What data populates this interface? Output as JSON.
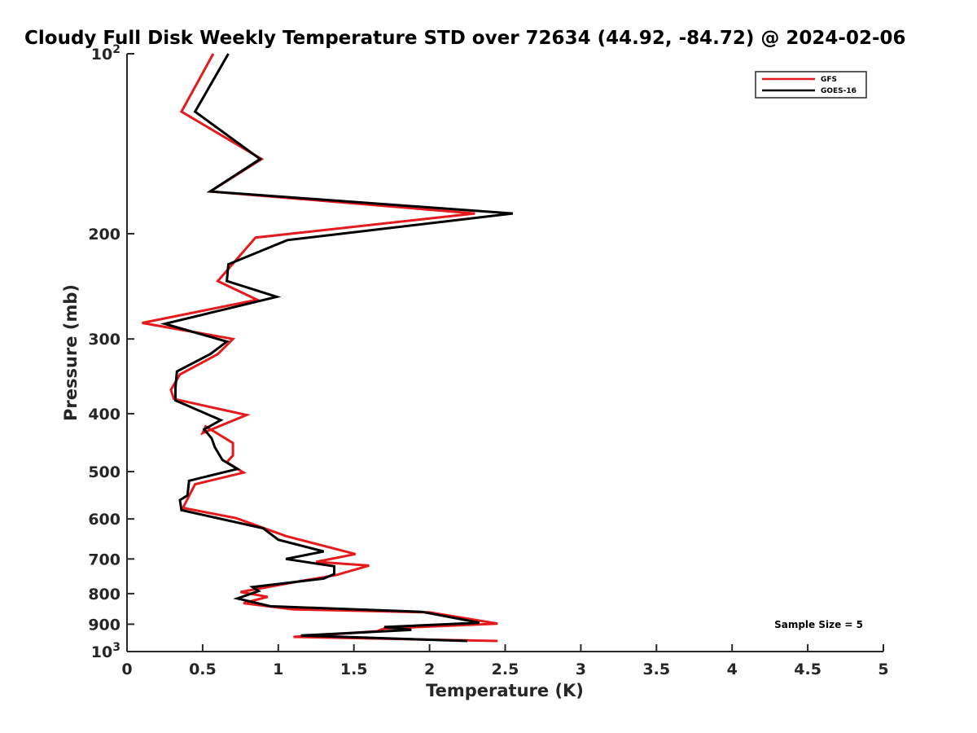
{
  "chart_data": {
    "type": "line",
    "title": "Cloudy Full Disk Weekly Temperature STD over 72634 (44.92, -84.72) @ 2024-02-06",
    "xlabel": "Temperature (K)",
    "ylabel": "Pressure (mb)",
    "xlim": [
      0,
      5
    ],
    "ylim": [
      100,
      1000
    ],
    "y_scale": "log",
    "y_reversed": true,
    "xticks": [
      0,
      0.5,
      1,
      1.5,
      2,
      2.5,
      3,
      3.5,
      4,
      4.5,
      5
    ],
    "xtick_labels": [
      "0",
      "0.5",
      "1",
      "1.5",
      "2",
      "2.5",
      "3",
      "3.5",
      "4",
      "4.5",
      "5"
    ],
    "yticks": [
      100,
      200,
      300,
      400,
      500,
      600,
      700,
      800,
      900,
      1000
    ],
    "ytick_labels": [
      {
        "text": "10",
        "sup": "2"
      },
      {
        "text": "200"
      },
      {
        "text": "300"
      },
      {
        "text": "400"
      },
      {
        "text": "500"
      },
      {
        "text": "600"
      },
      {
        "text": "700"
      },
      {
        "text": "800"
      },
      {
        "text": "900"
      },
      {
        "text": "10",
        "sup": "3"
      }
    ],
    "legend_position": "top-right",
    "annotation": "Sample Size = 5",
    "series": [
      {
        "name": "GFS",
        "color": "#e41a1c",
        "points": [
          [
            0.57,
            100
          ],
          [
            0.36,
            125
          ],
          [
            0.89,
            150
          ],
          [
            0.55,
            170
          ],
          [
            2.3,
            185
          ],
          [
            0.85,
            203
          ],
          [
            0.6,
            240
          ],
          [
            0.86,
            258
          ],
          [
            0.1,
            282
          ],
          [
            0.7,
            300
          ],
          [
            0.6,
            318
          ],
          [
            0.35,
            344
          ],
          [
            0.29,
            365
          ],
          [
            0.31,
            378
          ],
          [
            0.79,
            402
          ],
          [
            0.5,
            431
          ],
          [
            0.52,
            420
          ],
          [
            0.7,
            448
          ],
          [
            0.7,
            470
          ],
          [
            0.66,
            482
          ],
          [
            0.77,
            502
          ],
          [
            0.45,
            525
          ],
          [
            0.37,
            575
          ],
          [
            0.72,
            598
          ],
          [
            1.05,
            641
          ],
          [
            1.51,
            687
          ],
          [
            1.25,
            708
          ],
          [
            1.6,
            718
          ],
          [
            1.38,
            745
          ],
          [
            1.15,
            762
          ],
          [
            0.75,
            795
          ],
          [
            0.93,
            810
          ],
          [
            0.77,
            830
          ],
          [
            1.1,
            850
          ],
          [
            2.0,
            860
          ],
          [
            2.45,
            898
          ],
          [
            1.7,
            915
          ],
          [
            1.65,
            925
          ],
          [
            1.1,
            945
          ],
          [
            2.45,
            960
          ]
        ]
      },
      {
        "name": "GOES-16",
        "color": "#000000",
        "points": [
          [
            0.67,
            100
          ],
          [
            0.45,
            125
          ],
          [
            0.88,
            150
          ],
          [
            0.55,
            170
          ],
          [
            2.55,
            185
          ],
          [
            1.06,
            205
          ],
          [
            0.67,
            225
          ],
          [
            0.66,
            240
          ],
          [
            0.99,
            255
          ],
          [
            0.25,
            283
          ],
          [
            0.66,
            303
          ],
          [
            0.55,
            318
          ],
          [
            0.33,
            340
          ],
          [
            0.32,
            362
          ],
          [
            0.32,
            380
          ],
          [
            0.62,
            410
          ],
          [
            0.51,
            425
          ],
          [
            0.56,
            440
          ],
          [
            0.58,
            455
          ],
          [
            0.63,
            478
          ],
          [
            0.73,
            495
          ],
          [
            0.41,
            518
          ],
          [
            0.4,
            548
          ],
          [
            0.35,
            558
          ],
          [
            0.36,
            580
          ],
          [
            0.9,
            622
          ],
          [
            1.0,
            650
          ],
          [
            1.3,
            680
          ],
          [
            1.05,
            700
          ],
          [
            1.37,
            720
          ],
          [
            1.37,
            742
          ],
          [
            1.3,
            755
          ],
          [
            0.83,
            780
          ],
          [
            0.87,
            792
          ],
          [
            0.73,
            815
          ],
          [
            0.95,
            840
          ],
          [
            1.95,
            858
          ],
          [
            2.33,
            895
          ],
          [
            1.7,
            910
          ],
          [
            1.88,
            920
          ],
          [
            1.15,
            940
          ],
          [
            2.25,
            960
          ]
        ]
      }
    ]
  }
}
